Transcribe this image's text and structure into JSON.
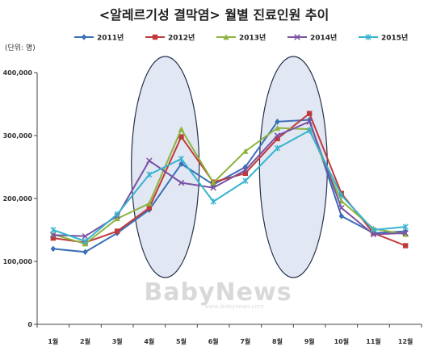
{
  "chart_data": {
    "type": "line",
    "title": "<알레르기성 결막염> 월별 진료인원 추이",
    "unit_label": "(단위: 명)",
    "categories": [
      "1월",
      "2월",
      "3월",
      "4월",
      "5월",
      "6월",
      "7월",
      "8월",
      "9월",
      "10월",
      "11월",
      "12월"
    ],
    "ylim": [
      0,
      400000
    ],
    "yticks": [
      "0",
      "100,000",
      "200,000",
      "300,000",
      "400,000"
    ],
    "ytick_values": [
      0,
      100000,
      200000,
      300000,
      400000
    ],
    "grid": false,
    "legend_position": "top",
    "series": [
      {
        "name": "2011년",
        "color": "#3a6fb6",
        "marker": "diamond",
        "values": [
          120000,
          115000,
          145000,
          182000,
          255000,
          222000,
          250000,
          322000,
          325000,
          172000,
          145000,
          148000
        ]
      },
      {
        "name": "2012년",
        "color": "#c0393b",
        "marker": "square",
        "values": [
          137000,
          130000,
          148000,
          185000,
          298000,
          226000,
          240000,
          295000,
          335000,
          208000,
          145000,
          125000
        ]
      },
      {
        "name": "2013년",
        "color": "#8db33f",
        "marker": "triangle",
        "values": [
          143000,
          128000,
          168000,
          192000,
          310000,
          225000,
          275000,
          312000,
          310000,
          196000,
          152000,
          143000
        ]
      },
      {
        "name": "2014년",
        "color": "#7a52a3",
        "marker": "x",
        "values": [
          142000,
          140000,
          172000,
          260000,
          225000,
          217000,
          245000,
          300000,
          322000,
          185000,
          143000,
          145000
        ]
      },
      {
        "name": "2015년",
        "color": "#36b3cf",
        "marker": "star",
        "values": [
          150000,
          132000,
          175000,
          238000,
          263000,
          195000,
          228000,
          280000,
          308000,
          205000,
          150000,
          155000
        ]
      }
    ]
  },
  "watermark": {
    "main": "BabyNews",
    "sub": "www.ibabynews.com"
  }
}
